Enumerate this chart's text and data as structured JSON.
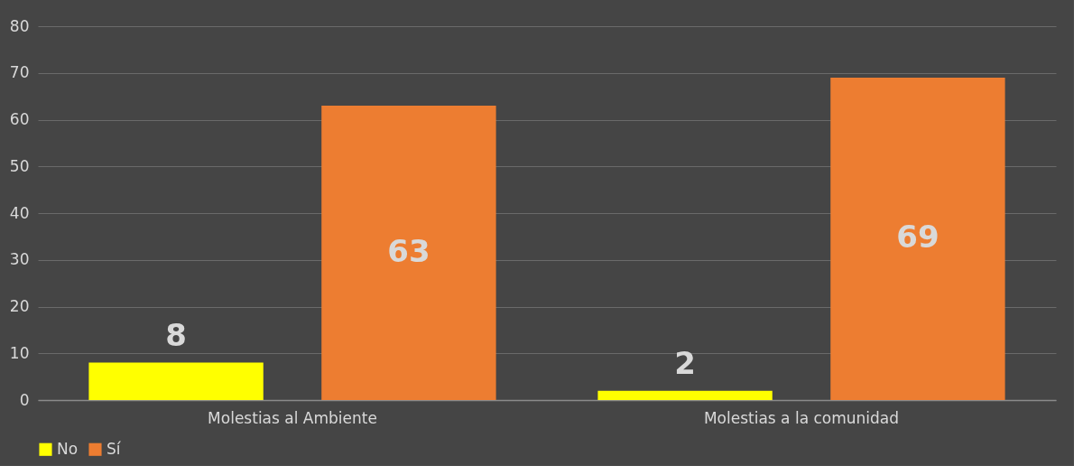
{
  "chart_data": {
    "type": "bar",
    "categories": [
      "Molestias al Ambiente",
      "Molestias a la comunidad"
    ],
    "series": [
      {
        "name": "No",
        "color": "#ffff00",
        "values": [
          8,
          2
        ]
      },
      {
        "name": "Sí",
        "color": "#ed7d31",
        "values": [
          63,
          69
        ]
      }
    ],
    "ylim": [
      0,
      80
    ],
    "yticks": [
      0,
      10,
      20,
      30,
      40,
      50,
      60,
      70,
      80
    ],
    "grid": "y",
    "legend": "bottom",
    "data_labels": true
  }
}
